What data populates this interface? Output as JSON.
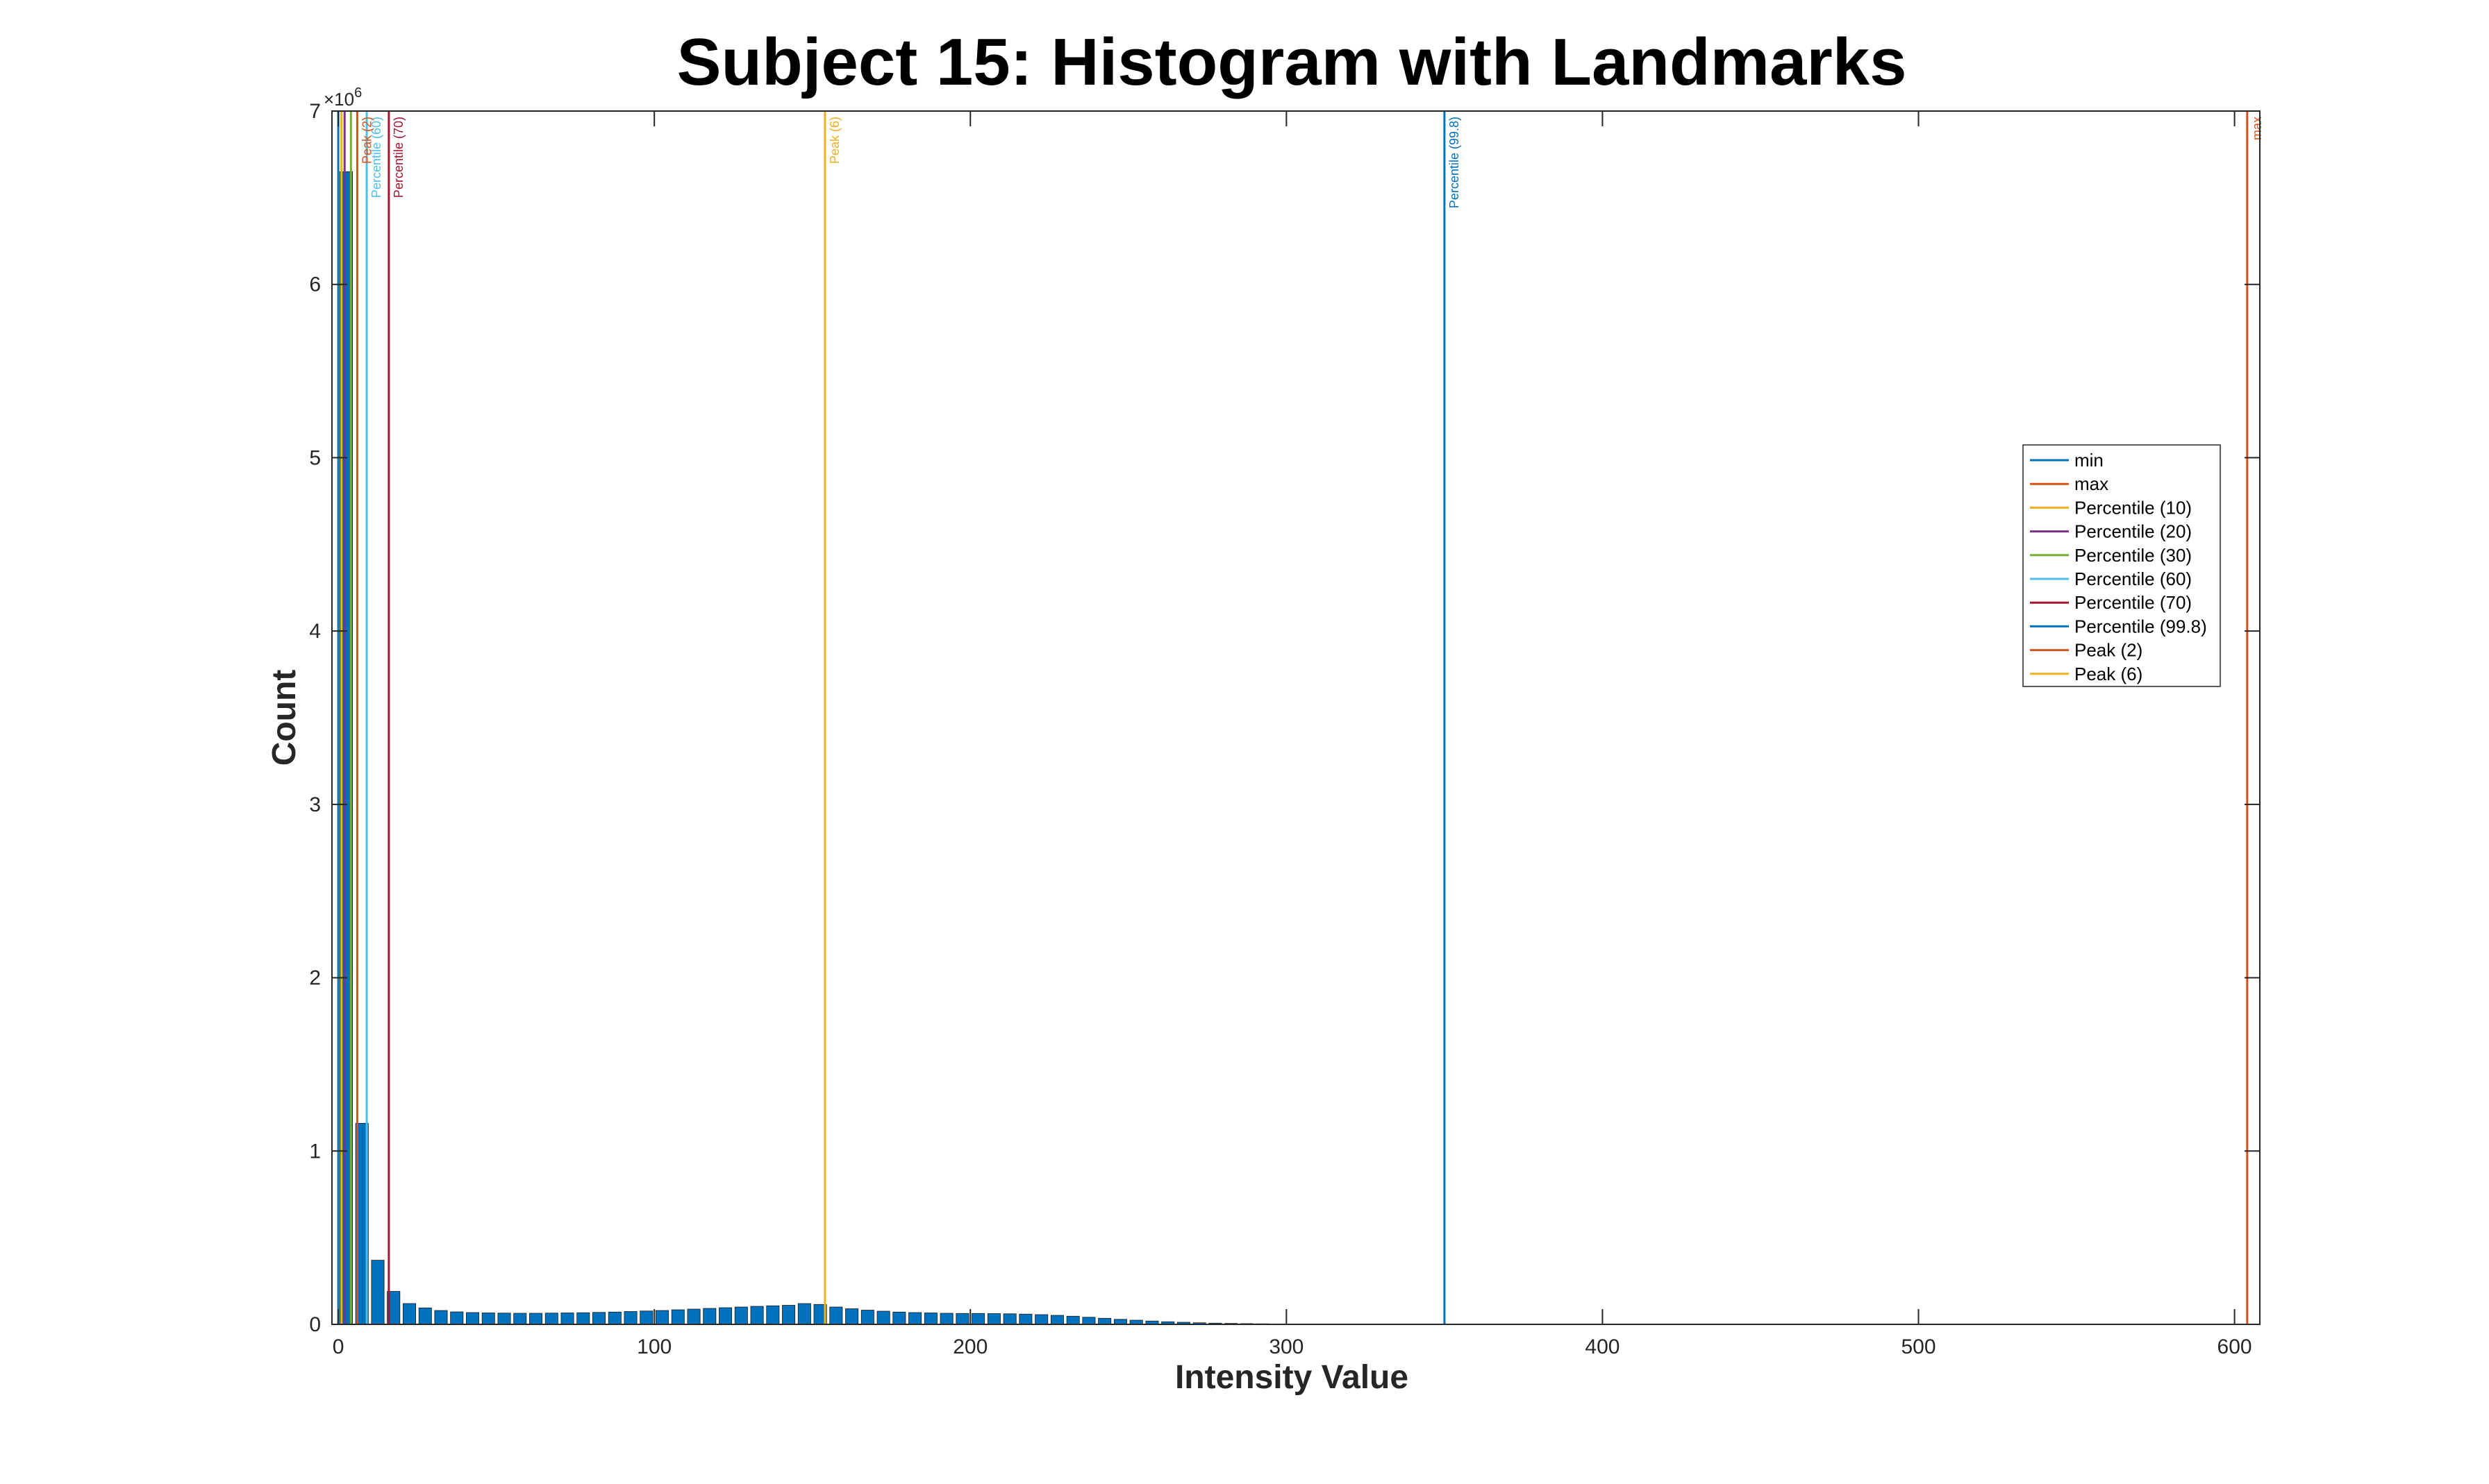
{
  "chart_data": {
    "type": "bar",
    "title": "Subject 15: Histogram with Landmarks",
    "xlabel": "Intensity Value",
    "ylabel": "Count",
    "y_exponent": "×10^6",
    "xlim": [
      -2,
      608
    ],
    "ylim": [
      0,
      7000000
    ],
    "xticks": [
      0,
      100,
      200,
      300,
      400,
      500,
      600
    ],
    "yticks": [
      0,
      1,
      2,
      3,
      4,
      5,
      6,
      7
    ],
    "bin_width": 5,
    "grid": false,
    "legend_position": "right",
    "bars": {
      "color": "#0072BD",
      "centers": [
        2.5,
        7.5,
        12.5,
        17.5,
        22.5,
        27.5,
        32.5,
        37.5,
        42.5,
        47.5,
        52.5,
        57.5,
        62.5,
        67.5,
        72.5,
        77.5,
        82.5,
        87.5,
        92.5,
        97.5,
        102.5,
        107.5,
        112.5,
        117.5,
        122.5,
        127.5,
        132.5,
        137.5,
        142.5,
        147.5,
        152.5,
        157.5,
        162.5,
        167.5,
        172.5,
        177.5,
        182.5,
        187.5,
        192.5,
        197.5,
        202.5,
        207.5,
        212.5,
        217.5,
        222.5,
        227.5,
        232.5,
        237.5,
        242.5,
        247.5,
        252.5,
        257.5,
        262.5,
        267.5,
        272.5,
        277.5,
        282.5,
        287.5,
        292.5,
        297.5,
        302.5,
        307.5,
        312.5,
        317.5,
        322.5,
        327.5,
        332.5,
        337.5,
        342.5,
        347.5,
        352.5,
        357.5,
        362.5,
        367.5,
        372.5,
        377.5,
        382.5,
        387.5,
        392.5,
        397.5,
        402.5,
        407.5,
        412.5,
        417.5,
        422.5,
        427.5,
        432.5,
        437.5,
        442.5,
        447.5,
        452.5,
        457.5,
        462.5,
        467.5,
        472.5,
        477.5,
        482.5,
        487.5,
        492.5,
        497.5,
        502.5,
        507.5,
        512.5,
        517.5,
        522.5,
        527.5,
        532.5,
        537.5,
        542.5,
        547.5,
        552.5,
        557.5,
        562.5,
        567.5,
        572.5,
        577.5,
        582.5
      ],
      "values": [
        6650000,
        1160000,
        370000,
        190000,
        120000,
        95000,
        80000,
        72000,
        68000,
        66000,
        65000,
        64000,
        64000,
        65000,
        66000,
        67000,
        69000,
        71000,
        74000,
        77000,
        80000,
        84000,
        88000,
        92000,
        96000,
        100000,
        104000,
        107000,
        110000,
        120000,
        115000,
        100000,
        90000,
        82000,
        76000,
        71000,
        68000,
        66000,
        64000,
        63000,
        63000,
        62000,
        61000,
        59000,
        56000,
        52000,
        47000,
        41000,
        35000,
        29000,
        24000,
        19000,
        15000,
        12000,
        9000,
        7000,
        5500,
        4200,
        3200,
        2500,
        2000,
        1600,
        1300,
        1100,
        900,
        750,
        650,
        550,
        480,
        420,
        380,
        340,
        300,
        270,
        250,
        230,
        210,
        190,
        180,
        170,
        160,
        150,
        140,
        130,
        120,
        110,
        100,
        95,
        90,
        85,
        80,
        75,
        70,
        65,
        60,
        55,
        50,
        45,
        40,
        35,
        30,
        25,
        20,
        15,
        10,
        8,
        6,
        5,
        4,
        3,
        2,
        1,
        1,
        1,
        1,
        1,
        1
      ]
    },
    "landmarks": [
      {
        "name": "min",
        "x": 0,
        "color": "#0072BD",
        "show_label": false
      },
      {
        "name": "max",
        "x": 604,
        "color": "#D95319",
        "show_label": true
      },
      {
        "name": "Percentile (10)",
        "x": 1,
        "color": "#EDB120",
        "show_label": false
      },
      {
        "name": "Percentile (20)",
        "x": 2,
        "color": "#7E2F8E",
        "show_label": false
      },
      {
        "name": "Percentile (30)",
        "x": 4,
        "color": "#77AC30",
        "show_label": false
      },
      {
        "name": "Percentile (60)",
        "x": 9,
        "color": "#4DBEEE",
        "show_label": true
      },
      {
        "name": "Percentile (70)",
        "x": 16,
        "color": "#A2142F",
        "show_label": true
      },
      {
        "name": "Percentile (99.8)",
        "x": 350,
        "color": "#0072BD",
        "show_label": true
      },
      {
        "name": "Peak (2)",
        "x": 6,
        "color": "#D95319",
        "show_label": true
      },
      {
        "name": "Peak (6)",
        "x": 154,
        "color": "#EDB120",
        "show_label": true
      }
    ]
  }
}
